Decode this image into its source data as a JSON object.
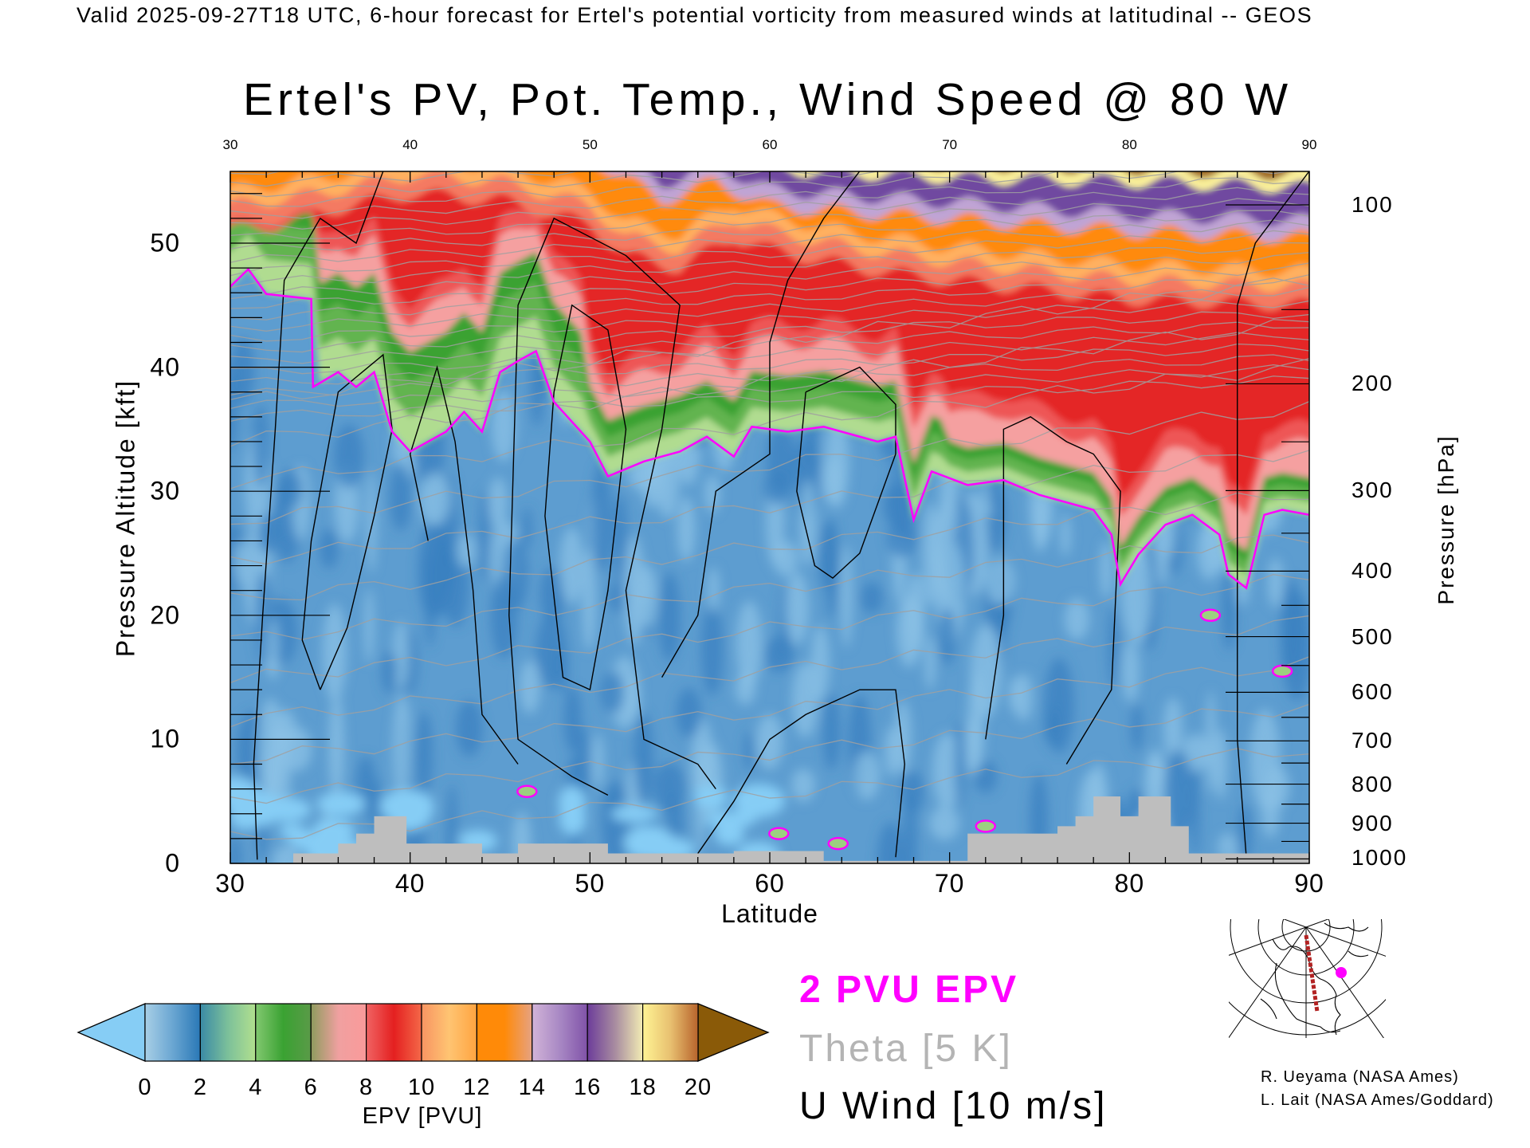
{
  "header": "Valid 2025-09-27T18 UTC, 6-hour forecast for Ertel's potential vorticity from measured winds at latitudinal -- GEOS",
  "chart_data": {
    "type": "heatmap",
    "title": "Ertel's PV, Pot. Temp., Wind Speed @ 80 W",
    "xlabel": "Latitude",
    "ylabel": "Pressure Altitude [kft]",
    "y2label": "Pressure [hPa]",
    "xlim": [
      30,
      90
    ],
    "ylim": [
      0,
      55.8
    ],
    "x_ticks": [
      30,
      40,
      50,
      60,
      70,
      80,
      90
    ],
    "top_ticks": [
      30,
      40,
      50,
      60,
      70,
      80,
      90
    ],
    "y_ticks": [
      0,
      10,
      20,
      30,
      40,
      50
    ],
    "pressure_ticks": [
      100,
      200,
      300,
      400,
      500,
      600,
      700,
      800,
      900,
      1000
    ],
    "colorbar": {
      "label": "EPV [PVU]",
      "ticks": [
        0,
        2,
        4,
        6,
        8,
        10,
        12,
        14,
        16,
        18,
        20
      ],
      "under_color": "#86cdf5",
      "over_color": "#8a5a08",
      "bins": [
        [
          "#a8cfe6",
          "#6aa6d2",
          "#2a78b6"
        ],
        [
          "#3a8aa6",
          "#7cc09a",
          "#b2e08e"
        ],
        [
          "#82c870",
          "#3aa232",
          "#5a9a48"
        ],
        [
          "#8e9c5e",
          "#f0a0a0",
          "#fa9a9a"
        ],
        [
          "#f06464",
          "#e42020",
          "#f46848"
        ],
        [
          "#f89462",
          "#ffc472",
          "#ffa440"
        ],
        [
          "#ff8a08",
          "#ff8a08",
          "#e6a282"
        ],
        [
          "#d2b4d8",
          "#a888c4",
          "#8052a8"
        ],
        [
          "#6c3c9a",
          "#a88ca0",
          "#f2ecb4"
        ],
        [
          "#fff494",
          "#e8c070",
          "#b8642c"
        ]
      ]
    },
    "pv_2pvu_contour": [
      [
        30,
        46.5
      ],
      [
        31,
        47.9
      ],
      [
        32,
        45.9
      ],
      [
        34.5,
        45.5
      ],
      [
        34.6,
        38.4
      ],
      [
        36,
        39.6
      ],
      [
        37,
        38.4
      ],
      [
        38,
        39.6
      ],
      [
        39,
        34.8
      ],
      [
        40,
        33.2
      ],
      [
        41,
        34
      ],
      [
        42,
        34.8
      ],
      [
        43,
        36.4
      ],
      [
        44,
        34.8
      ],
      [
        45,
        39.6
      ],
      [
        46,
        40.5
      ],
      [
        47,
        41.3
      ],
      [
        48,
        37.2
      ],
      [
        49,
        35.6
      ],
      [
        50,
        34
      ],
      [
        51,
        31.2
      ],
      [
        53,
        32.4
      ],
      [
        55,
        33.2
      ],
      [
        56.5,
        34.4
      ],
      [
        58,
        32.8
      ],
      [
        59,
        35.2
      ],
      [
        61,
        34.8
      ],
      [
        63,
        35.2
      ],
      [
        65,
        34.4
      ],
      [
        66,
        34
      ],
      [
        67,
        34.4
      ],
      [
        68,
        27.7
      ],
      [
        69,
        31.6
      ],
      [
        71,
        30.5
      ],
      [
        73,
        30.9
      ],
      [
        75,
        29.7
      ],
      [
        78,
        28.5
      ],
      [
        79,
        26.5
      ],
      [
        79.5,
        22.5
      ],
      [
        80.5,
        24.9
      ],
      [
        82,
        27.3
      ],
      [
        83.5,
        28.1
      ],
      [
        85,
        26.5
      ],
      [
        85.5,
        23.3
      ],
      [
        86.5,
        22.2
      ],
      [
        87.5,
        28.1
      ],
      [
        88.5,
        28.5
      ],
      [
        90,
        28.1
      ]
    ],
    "terrain_kft": [
      [
        30,
        0
      ],
      [
        33.5,
        0
      ],
      [
        33.5,
        0.8
      ],
      [
        36,
        0.8
      ],
      [
        36,
        1.6
      ],
      [
        37,
        1.6
      ],
      [
        37,
        2.4
      ],
      [
        38,
        2.4
      ],
      [
        38,
        3.8
      ],
      [
        39.8,
        3.8
      ],
      [
        39.8,
        1.6
      ],
      [
        44,
        1.6
      ],
      [
        44,
        0.8
      ],
      [
        46,
        0.8
      ],
      [
        46,
        1.6
      ],
      [
        51,
        1.6
      ],
      [
        51,
        0.8
      ],
      [
        58,
        0.8
      ],
      [
        58,
        1.0
      ],
      [
        63,
        1.0
      ],
      [
        63,
        0.2
      ],
      [
        71,
        0.2
      ],
      [
        71,
        2.4
      ],
      [
        76,
        2.4
      ],
      [
        76,
        3.0
      ],
      [
        77,
        3.0
      ],
      [
        77,
        3.8
      ],
      [
        78,
        3.8
      ],
      [
        78,
        5.4
      ],
      [
        79.5,
        5.4
      ],
      [
        79.5,
        3.8
      ],
      [
        80.5,
        3.8
      ],
      [
        80.5,
        5.4
      ],
      [
        82.3,
        5.4
      ],
      [
        82.3,
        3.0
      ],
      [
        83.3,
        3.0
      ],
      [
        83.3,
        0.8
      ],
      [
        90,
        0.8
      ],
      [
        90,
        0
      ]
    ]
  },
  "legend": {
    "pv": "2 PVU EPV",
    "theta": "Theta [5 K]",
    "wind": "U Wind [10 m/s]"
  },
  "colors": {
    "pv_contour": "#ff00ff",
    "theta": "#a0a0a0",
    "terrain": "#bebebe",
    "track": "#b22222"
  },
  "credits": [
    "R. Ueyama (NASA Ames)",
    "L. Lait (NASA Ames/Goddard)"
  ]
}
